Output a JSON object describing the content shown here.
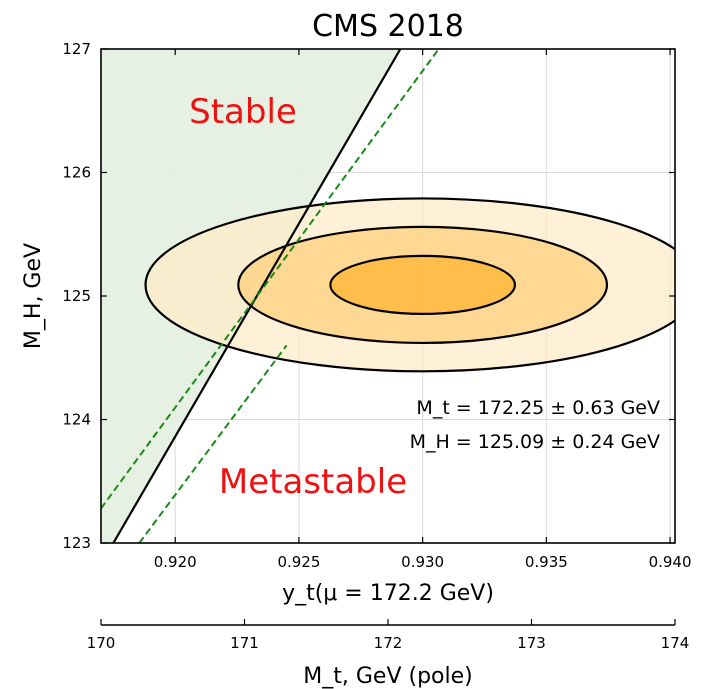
{
  "chart_data": {
    "type": "contour",
    "title": "CMS 2018",
    "xlabel": "y_t(μ = 172.2 GeV)",
    "ylabel": "M_H, GeV",
    "xlim": [
      0.917,
      0.9402
    ],
    "ylim": [
      123,
      127
    ],
    "x_ticks": [
      "0.920",
      "0.925",
      "0.930",
      "0.935",
      "0.940"
    ],
    "y_ticks": [
      "123",
      "124",
      "125",
      "126",
      "127"
    ],
    "grid": true,
    "secondary_xaxis": {
      "label": "M_t, GeV (pole)",
      "lim": [
        170,
        174
      ],
      "ticks": [
        "170",
        "171",
        "172",
        "173",
        "174"
      ]
    },
    "ellipses": [
      {
        "level": "3sigma",
        "center": [
          0.93,
          125.09
        ],
        "x_halfwidth": 0.0112,
        "y_halfwidth": 0.7,
        "fill": "#ffebc8"
      },
      {
        "level": "2sigma",
        "center": [
          0.93,
          125.09
        ],
        "x_halfwidth": 0.00745,
        "y_halfwidth": 0.47,
        "fill": "#ffd07a"
      },
      {
        "level": "1sigma",
        "center": [
          0.93,
          125.09
        ],
        "x_halfwidth": 0.00373,
        "y_halfwidth": 0.235,
        "fill": "#ffb22c"
      }
    ],
    "stability_boundary": {
      "line": {
        "x": [
          0.9175,
          0.9291
        ],
        "y": [
          123.0,
          127.0
        ],
        "color": "#000000"
      },
      "upper_dashed": {
        "x": [
          0.917,
          0.93065
        ],
        "y": [
          123.28,
          127.0
        ],
        "color": "#1a8a1a"
      },
      "lower_dashed": {
        "x": [
          0.91855,
          0.9245
        ],
        "y": [
          123.0,
          124.6
        ],
        "color": "#1a8a1a"
      },
      "stable_fill": "#e3f0e0"
    },
    "annotations": {
      "stable_label": "Stable",
      "metastable_label": "Metastable",
      "mt_value": "M_t = 172.25 ± 0.63 GeV",
      "mh_value": "M_H = 125.09 ± 0.24 GeV",
      "label_color": "#ee1111"
    }
  }
}
